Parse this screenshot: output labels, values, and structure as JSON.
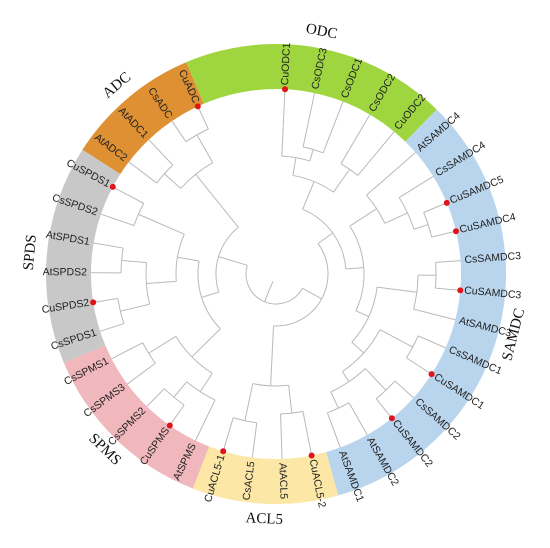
{
  "groups": [
    {
      "name": "ODC",
      "color": "#9fd63f",
      "start": 0,
      "end": 5
    },
    {
      "name": "SAMDC",
      "color": "#b9d5ee",
      "start": 6,
      "end": 19
    },
    {
      "name": "ACL5",
      "color": "#fce7a6",
      "start": 20,
      "end": 23
    },
    {
      "name": "SPMS",
      "color": "#f0b7bc",
      "start": 24,
      "end": 29
    },
    {
      "name": "SPDS",
      "color": "#c8c8c8",
      "start": 30,
      "end": 35
    },
    {
      "name": "ADC",
      "color": "#de9032",
      "start": 36,
      "end": 40
    }
  ],
  "leaves": [
    {
      "label": "CuODC1",
      "marked": true
    },
    {
      "label": "CsODC3",
      "marked": false
    },
    {
      "label": "CsODC1",
      "marked": false
    },
    {
      "label": "CsODC2",
      "marked": false
    },
    {
      "label": "CuODC2",
      "marked": false
    },
    {
      "label": "AtSAMDC4",
      "marked": false
    },
    {
      "label": "CsSAMDC4",
      "marked": false
    },
    {
      "label": "CuSAMDC5",
      "marked": true
    },
    {
      "label": "CuSAMDC4",
      "marked": true
    },
    {
      "label": "CsSAMDC3",
      "marked": false
    },
    {
      "label": "CuSAMDC3",
      "marked": true
    },
    {
      "label": "AtSAMDC3",
      "marked": false
    },
    {
      "label": "CsSAMDC1",
      "marked": false
    },
    {
      "label": "CuSAMDC1",
      "marked": true
    },
    {
      "label": "CsSAMDC2",
      "marked": false
    },
    {
      "label": "CuSAMDC2",
      "marked": true
    },
    {
      "label": "AtSAMDC2",
      "marked": false
    },
    {
      "label": "AtSAMDC1",
      "marked": false
    },
    {
      "label": "CuACL5-2",
      "marked": true
    },
    {
      "label": "AtACL5",
      "marked": false
    },
    {
      "label": "CsACL5",
      "marked": false
    },
    {
      "label": "CuACL5-1",
      "marked": true
    },
    {
      "label": "AtSPMS",
      "marked": false
    },
    {
      "label": "CuSPMS",
      "marked": true
    },
    {
      "label": "CsSPMS2",
      "marked": false
    },
    {
      "label": "CsSPMS3",
      "marked": false
    },
    {
      "label": "CsSPMS1",
      "marked": false
    },
    {
      "label": "CsSPDS1",
      "marked": false
    },
    {
      "label": "CuSPDS2",
      "marked": true
    },
    {
      "label": "AtSPDS2",
      "marked": false
    },
    {
      "label": "AtSPDS1",
      "marked": false
    },
    {
      "label": "CsSPDS2",
      "marked": false
    },
    {
      "label": "CuSPDS1",
      "marked": true
    },
    {
      "label": "AtADC2",
      "marked": false
    },
    {
      "label": "AtADC1",
      "marked": false
    },
    {
      "label": "CsADC",
      "marked": false
    },
    {
      "label": "CuADC",
      "marked": true
    }
  ],
  "colors": {
    "marker": "#e0141a",
    "branch": "#b9b9b9"
  }
}
